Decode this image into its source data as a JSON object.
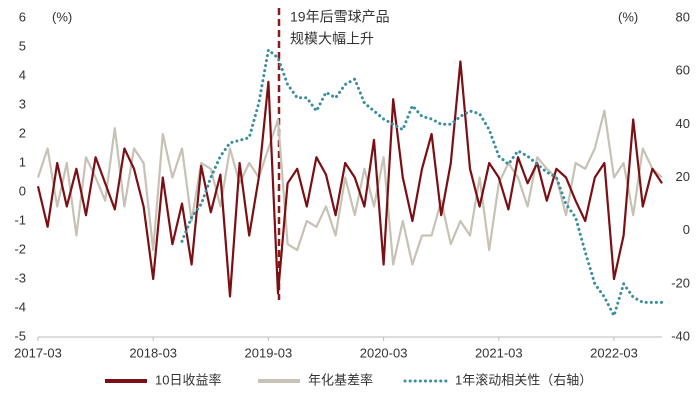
{
  "chart_data": {
    "type": "line",
    "annotation": [
      "19年后雪球产品",
      "规模大幅上升"
    ],
    "y_label": "(%)",
    "y2_label": "(%)",
    "categories": [
      "2017-03",
      null,
      null,
      null,
      null,
      null,
      null,
      null,
      null,
      null,
      null,
      null,
      "2018-03",
      null,
      null,
      null,
      null,
      null,
      null,
      null,
      null,
      null,
      null,
      null,
      "2019-03",
      null,
      null,
      null,
      null,
      null,
      null,
      null,
      null,
      null,
      null,
      null,
      "2020-03",
      null,
      null,
      null,
      null,
      null,
      null,
      null,
      null,
      null,
      null,
      null,
      "2021-03",
      null,
      null,
      null,
      null,
      null,
      null,
      null,
      null,
      null,
      null,
      null,
      "2022-03",
      null,
      null,
      null,
      null,
      null
    ],
    "series": [
      {
        "name": "10日收益率",
        "color": "#7b0f14",
        "style": "solid",
        "values": [
          0.2,
          -1.2,
          1.0,
          -0.5,
          0.8,
          -0.8,
          1.2,
          0.3,
          -0.6,
          1.5,
          0.8,
          -0.5,
          -3.0,
          0.5,
          -1.8,
          -0.4,
          -2.5,
          0.9,
          -0.7,
          0.6,
          -3.6,
          1.0,
          -1.5,
          0.5,
          3.8,
          -3.5,
          0.3,
          0.8,
          -0.5,
          1.2,
          0.6,
          -0.8,
          1.0,
          0.5,
          -0.5,
          1.8,
          -2.5,
          3.2,
          0.5,
          -1.0,
          0.8,
          2.0,
          -0.8,
          1.0,
          4.5,
          0.8,
          -0.5,
          1.0,
          0.5,
          -0.6,
          1.2,
          0.3,
          1.0,
          -0.3,
          0.8,
          0.5,
          -0.3,
          -1.0,
          0.5,
          1.0,
          -3.0,
          -1.5,
          2.5,
          -0.5,
          0.8,
          0.3
        ]
      },
      {
        "name": "年化基差率",
        "color": "#c7c2b5",
        "style": "solid",
        "values": [
          0.5,
          1.5,
          -0.5,
          1.0,
          -1.5,
          1.2,
          0.5,
          -0.3,
          2.2,
          -0.5,
          1.5,
          1.0,
          -2.0,
          2.0,
          0.5,
          1.5,
          -1.0,
          1.0,
          0.8,
          -0.5,
          1.5,
          0.3,
          1.0,
          0.5,
          1.5,
          2.5,
          -1.8,
          -2.0,
          -1.0,
          -1.2,
          -0.5,
          -1.5,
          0.5,
          -0.8,
          0.8,
          -0.5,
          1.2,
          -2.5,
          -1.0,
          -2.5,
          -1.5,
          -1.5,
          -0.3,
          -1.8,
          -1.0,
          -1.5,
          0.5,
          -2.0,
          0.3,
          1.0,
          0.5,
          -0.5,
          1.2,
          0.8,
          0.5,
          -0.8,
          1.0,
          0.8,
          1.5,
          2.8,
          0.5,
          1.0,
          -0.8,
          1.5,
          0.8,
          0.5
        ]
      },
      {
        "name": "1年滚动相关性（右轴）",
        "color": "#3a8ea0",
        "style": "dotted",
        "axis": "y2",
        "values": [
          null,
          null,
          null,
          null,
          null,
          null,
          null,
          null,
          null,
          null,
          null,
          null,
          null,
          null,
          null,
          -4,
          5,
          10,
          20,
          28,
          33,
          34,
          35,
          48,
          68,
          65,
          55,
          50,
          50,
          45,
          52,
          50,
          55,
          57,
          48,
          45,
          42,
          40,
          38,
          47,
          43,
          42,
          40,
          40,
          43,
          45,
          44,
          38,
          28,
          25,
          30,
          28,
          25,
          22,
          20,
          10,
          5,
          -8,
          -20,
          -25,
          -32,
          -20,
          -25,
          -27,
          -27,
          -27
        ]
      }
    ],
    "ylim": [
      -5,
      6
    ],
    "yticks": [
      -5,
      -4,
      -3,
      -2,
      -1,
      0,
      1,
      2,
      3,
      4,
      5,
      6
    ],
    "y2lim": [
      -40,
      80
    ],
    "y2ticks": [
      -40,
      -20,
      0,
      20,
      40,
      60,
      80
    ],
    "legend": "bottom"
  }
}
